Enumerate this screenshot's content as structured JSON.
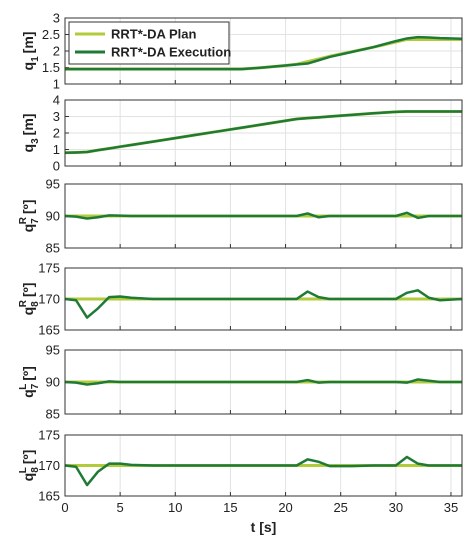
{
  "chart_data": [
    {
      "type": "line",
      "ylabel": {
        "base": "q",
        "sub": "1",
        "unit": "[m]"
      },
      "x": [
        0,
        1,
        2,
        3,
        4,
        5,
        6,
        8,
        10,
        12,
        14,
        16,
        18,
        20,
        21,
        22,
        23,
        24,
        26,
        28,
        30,
        31,
        32,
        33,
        34,
        36
      ],
      "xlim": [
        0,
        36
      ],
      "xticks": [
        0,
        5,
        10,
        15,
        20,
        25,
        30,
        35
      ],
      "ylim": [
        1,
        3
      ],
      "yticks": [
        1,
        1.5,
        2,
        2.5,
        3
      ],
      "grid": true,
      "legend": "upper left",
      "series": [
        {
          "name": "RRT*-DA Plan",
          "color": "#b2cb3a",
          "values": [
            1.45,
            1.45,
            1.45,
            1.45,
            1.45,
            1.45,
            1.45,
            1.45,
            1.45,
            1.45,
            1.45,
            1.45,
            1.5,
            1.56,
            1.6,
            1.68,
            1.76,
            1.84,
            1.98,
            2.12,
            2.27,
            2.35,
            2.35,
            2.35,
            2.35,
            2.35
          ]
        },
        {
          "name": "RRT*-DA Execution",
          "color": "#1f7a35",
          "values": [
            1.45,
            1.45,
            1.45,
            1.45,
            1.45,
            1.45,
            1.45,
            1.45,
            1.45,
            1.45,
            1.45,
            1.45,
            1.5,
            1.56,
            1.59,
            1.62,
            1.72,
            1.82,
            1.97,
            2.12,
            2.3,
            2.38,
            2.42,
            2.41,
            2.39,
            2.37
          ]
        }
      ]
    },
    {
      "type": "line",
      "ylabel": {
        "base": "q",
        "sub": "3",
        "unit": "[m]"
      },
      "x": [
        0,
        1,
        2,
        3,
        4,
        5,
        6,
        8,
        10,
        12,
        14,
        16,
        18,
        20,
        21,
        22,
        23,
        24,
        26,
        28,
        30,
        31,
        32,
        33,
        34,
        36
      ],
      "xlim": [
        0,
        36
      ],
      "xticks": [
        0,
        5,
        10,
        15,
        20,
        25,
        30,
        35
      ],
      "ylim": [
        0,
        4
      ],
      "yticks": [
        0,
        1,
        2,
        3,
        4
      ],
      "grid": true,
      "series": [
        {
          "color": "#b2cb3a",
          "values": [
            0.8,
            0.82,
            0.85,
            0.96,
            1.06,
            1.17,
            1.27,
            1.48,
            1.69,
            1.9,
            2.11,
            2.32,
            2.53,
            2.74,
            2.85,
            2.9,
            2.95,
            3.0,
            3.1,
            3.2,
            3.28,
            3.3,
            3.3,
            3.3,
            3.3,
            3.3
          ]
        },
        {
          "color": "#1f7a35",
          "values": [
            0.8,
            0.82,
            0.85,
            0.96,
            1.06,
            1.17,
            1.27,
            1.48,
            1.69,
            1.9,
            2.11,
            2.32,
            2.53,
            2.74,
            2.85,
            2.9,
            2.95,
            3.0,
            3.1,
            3.2,
            3.28,
            3.3,
            3.3,
            3.3,
            3.3,
            3.3
          ]
        }
      ]
    },
    {
      "type": "line",
      "ylabel": {
        "base": "q",
        "sub": "7",
        "sup": "R",
        "unit": "[º]"
      },
      "x": [
        0,
        1,
        2,
        3,
        4,
        5,
        6,
        8,
        10,
        12,
        14,
        16,
        18,
        20,
        21,
        22,
        23,
        24,
        26,
        28,
        30,
        31,
        32,
        33,
        34,
        36
      ],
      "xlim": [
        0,
        36
      ],
      "xticks": [
        0,
        5,
        10,
        15,
        20,
        25,
        30,
        35
      ],
      "ylim": [
        85,
        95
      ],
      "yticks": [
        85,
        90,
        95
      ],
      "grid": true,
      "series": [
        {
          "color": "#b2cb3a",
          "values": [
            90,
            90,
            90,
            90,
            90,
            90,
            90,
            90,
            90,
            90,
            90,
            90,
            90,
            90,
            90,
            90,
            90,
            90,
            90,
            90,
            90,
            90,
            90,
            90,
            90,
            90
          ]
        },
        {
          "color": "#1f7a35",
          "values": [
            90,
            89.9,
            89.6,
            89.8,
            90.1,
            90.05,
            90,
            90,
            90,
            90,
            90,
            90,
            90,
            90,
            90,
            90.4,
            89.8,
            90,
            90,
            90,
            90,
            90.5,
            89.7,
            90,
            90,
            90
          ]
        }
      ]
    },
    {
      "type": "line",
      "ylabel": {
        "base": "q",
        "sub": "8",
        "sup": "R",
        "unit": "[º]"
      },
      "x": [
        0,
        1,
        2,
        3,
        4,
        5,
        6,
        8,
        10,
        12,
        14,
        16,
        18,
        20,
        21,
        22,
        23,
        24,
        26,
        28,
        30,
        31,
        32,
        33,
        34,
        36
      ],
      "xlim": [
        0,
        36
      ],
      "xticks": [
        0,
        5,
        10,
        15,
        20,
        25,
        30,
        35
      ],
      "ylim": [
        165,
        175
      ],
      "yticks": [
        165,
        170,
        175
      ],
      "grid": true,
      "series": [
        {
          "color": "#b2cb3a",
          "values": [
            170,
            170,
            170,
            170,
            170,
            170,
            170,
            170,
            170,
            170,
            170,
            170,
            170,
            170,
            170,
            170,
            170,
            170,
            170,
            170,
            170,
            170,
            170,
            170,
            170,
            170
          ]
        },
        {
          "color": "#1f7a35",
          "values": [
            170,
            169.8,
            167,
            168.5,
            170.3,
            170.4,
            170.2,
            170,
            170,
            170,
            170,
            170,
            170,
            170,
            170,
            171.2,
            170.3,
            170,
            170,
            170,
            170,
            171,
            171.4,
            170.2,
            169.8,
            170
          ]
        }
      ]
    },
    {
      "type": "line",
      "ylabel": {
        "base": "q",
        "sub": "7",
        "sup": "L",
        "unit": "[º]"
      },
      "x": [
        0,
        1,
        2,
        3,
        4,
        5,
        6,
        8,
        10,
        12,
        14,
        16,
        18,
        20,
        21,
        22,
        23,
        24,
        26,
        28,
        30,
        31,
        32,
        33,
        34,
        36
      ],
      "xlim": [
        0,
        36
      ],
      "xticks": [
        0,
        5,
        10,
        15,
        20,
        25,
        30,
        35
      ],
      "ylim": [
        85,
        95
      ],
      "yticks": [
        85,
        90,
        95
      ],
      "grid": true,
      "series": [
        {
          "color": "#b2cb3a",
          "values": [
            90,
            90,
            90,
            90,
            90,
            90,
            90,
            90,
            90,
            90,
            90,
            90,
            90,
            90,
            90,
            90,
            90,
            90,
            90,
            90,
            90,
            90,
            90,
            90,
            90,
            90
          ]
        },
        {
          "color": "#1f7a35",
          "values": [
            90,
            89.9,
            89.6,
            89.8,
            90.1,
            90,
            90,
            90,
            90,
            90,
            90,
            90,
            90,
            90,
            90,
            90.3,
            89.9,
            90,
            90,
            90,
            90,
            89.9,
            90.4,
            90.2,
            90,
            90
          ]
        }
      ]
    },
    {
      "type": "line",
      "ylabel": {
        "base": "q",
        "sub": "8",
        "sup": "L",
        "unit": "[º]"
      },
      "xlabel": "t [s]",
      "x": [
        0,
        1,
        2,
        3,
        4,
        5,
        6,
        8,
        10,
        12,
        14,
        16,
        18,
        20,
        21,
        22,
        23,
        24,
        26,
        28,
        30,
        31,
        32,
        33,
        34,
        36
      ],
      "xlim": [
        0,
        36
      ],
      "xticks": [
        0,
        5,
        10,
        15,
        20,
        25,
        30,
        35
      ],
      "ylim": [
        165,
        175
      ],
      "yticks": [
        165,
        170,
        175
      ],
      "grid": true,
      "series": [
        {
          "color": "#b2cb3a",
          "values": [
            170,
            170,
            170,
            170,
            170,
            170,
            170,
            170,
            170,
            170,
            170,
            170,
            170,
            170,
            170,
            170,
            170,
            170,
            170,
            170,
            170,
            170,
            170,
            170,
            170,
            170
          ]
        },
        {
          "color": "#1f7a35",
          "values": [
            170,
            169.8,
            166.8,
            169,
            170.3,
            170.3,
            170.1,
            170,
            170,
            170,
            170,
            170,
            170,
            170,
            170,
            171,
            170.6,
            169.9,
            169.9,
            170,
            170,
            171.4,
            170.3,
            170,
            170,
            170
          ]
        }
      ]
    }
  ]
}
